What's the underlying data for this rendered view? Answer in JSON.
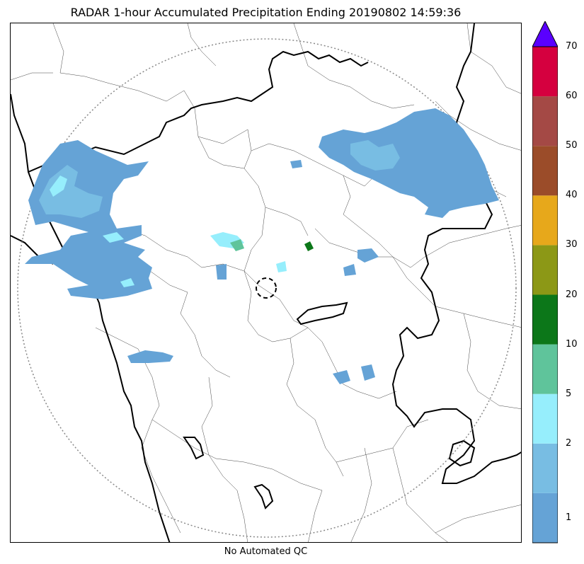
{
  "title": "RADAR 1-hour Accumulated Precipitation Ending 20190802 14:59:36",
  "footer": "No Automated QC",
  "colorbar": {
    "ticks": [
      "1",
      "2",
      "5",
      "10",
      "20",
      "30",
      "40",
      "50",
      "60",
      "70"
    ],
    "colors": [
      "#65a3d6",
      "#78bde3",
      "#96eefc",
      "#5fc49b",
      "#0c7719",
      "#8c9816",
      "#e7a81b",
      "#9b4c29",
      "#a44945",
      "#d5003f"
    ],
    "extend_color": "#5a00ff"
  },
  "map": {
    "radar_range_ring": "dotted",
    "radar_site_marker": "dashed-circle",
    "boundaries": [
      "coastline",
      "state-borders",
      "district-borders"
    ],
    "precip_colors": {
      "light": "#65a3d6",
      "medium": "#78bde3",
      "heavy": "#96eefc",
      "green": "#5fc49b",
      "dark_green": "#0c7719"
    }
  }
}
